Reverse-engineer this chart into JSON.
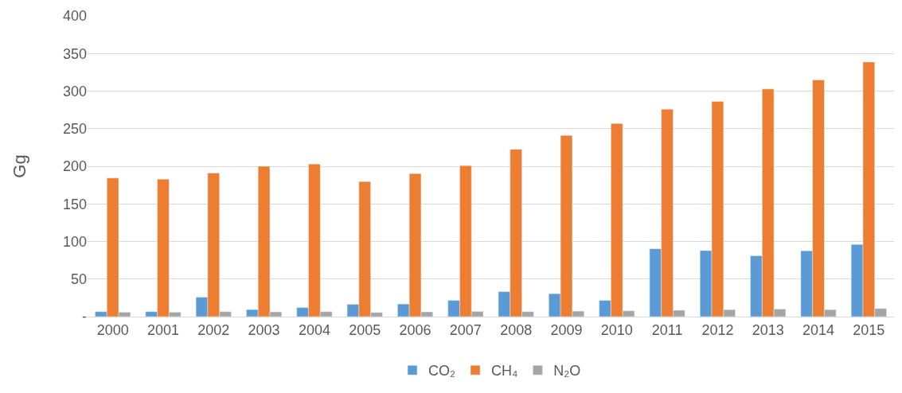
{
  "chart_data": {
    "type": "bar",
    "ylabel": "Gg",
    "categories": [
      "2000",
      "2001",
      "2002",
      "2003",
      "2004",
      "2005",
      "2006",
      "2007",
      "2008",
      "2009",
      "2010",
      "2011",
      "2012",
      "2013",
      "2014",
      "2015"
    ],
    "series": [
      {
        "name": "CO₂",
        "color": "#5b9bd5",
        "values": [
          6.6,
          6.6,
          25.8,
          9.4,
          12.1,
          16.4,
          16.8,
          21.6,
          33.2,
          30.5,
          21.6,
          90.3,
          87.9,
          81,
          87.6,
          96
        ]
      },
      {
        "name": "CH₄",
        "color": "#ed7d31",
        "values": [
          184.4,
          182.8,
          191,
          200,
          203,
          179.7,
          190.2,
          200.9,
          222.6,
          241,
          256.9,
          275.8,
          286.2,
          302.8,
          314.8,
          338.7
        ]
      },
      {
        "name": "N₂O",
        "color": "#a5a5a5",
        "values": [
          5.9,
          5.9,
          6.6,
          6.3,
          6.6,
          5.5,
          6.3,
          6.9,
          6.6,
          7.3,
          7.7,
          8.5,
          9.3,
          10,
          9.3,
          10.8
        ]
      }
    ],
    "ylim": [
      0,
      400
    ],
    "yticks": [
      {
        "value": 0,
        "label": "-"
      },
      50,
      100,
      150,
      200,
      250,
      300,
      350,
      400
    ],
    "grid": "y",
    "legend": "bottom"
  }
}
